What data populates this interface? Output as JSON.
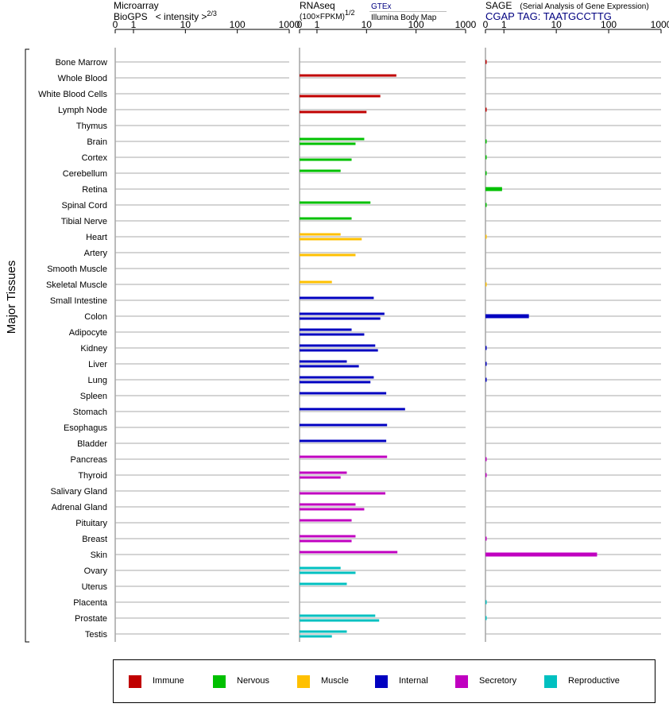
{
  "headers": {
    "microarray": {
      "line1": "Microarray",
      "source": "BioGPS",
      "scale": "< intensity >",
      "exponent": "2/3"
    },
    "rnaseq": {
      "line1": "RNAseq",
      "unit": "(100×FPKM)",
      "exponent": "1/2",
      "source1": "GTEx",
      "source2": "Illumina Body Map"
    },
    "sage": {
      "line1": "SAGE",
      "desc": "(Serial Analysis of Gene Expression)",
      "tag": "CGAP TAG: TAATGCCTTG"
    }
  },
  "y_axis_label": "Major Tissues",
  "colors": {
    "Immune": "#c00000",
    "Nervous": "#00c000",
    "Muscle": "#ffc000",
    "Internal": "#0000c0",
    "Secretory": "#c000c0",
    "Reproductive": "#00c0c0"
  },
  "legend": [
    {
      "label": "Immune",
      "group": "Immune"
    },
    {
      "label": "Nervous",
      "group": "Nervous"
    },
    {
      "label": "Muscle",
      "group": "Muscle"
    },
    {
      "label": "Internal",
      "group": "Internal"
    },
    {
      "label": "Secretory",
      "group": "Secretory"
    },
    {
      "label": "Reproductive",
      "group": "Reproductive"
    }
  ],
  "chart_data": {
    "type": "bar",
    "orientation": "horizontal",
    "panels": [
      {
        "id": "microarray",
        "ticks": [
          "0",
          "1",
          "10",
          "100",
          "1000"
        ],
        "xlim": [
          0,
          1000
        ]
      },
      {
        "id": "rnaseq",
        "ticks": [
          "0",
          "1",
          "10",
          "100",
          "1000"
        ],
        "xlim": [
          0,
          1000
        ]
      },
      {
        "id": "sage",
        "ticks": [
          "0",
          "1",
          "10",
          "100",
          "1000"
        ],
        "xlim": [
          0,
          1000
        ]
      }
    ],
    "tissues": [
      {
        "name": "Bone Marrow",
        "group": "Immune",
        "microarray": [],
        "rnaseq": [],
        "sage": 0.05
      },
      {
        "name": "Whole Blood",
        "group": "Immune",
        "microarray": [],
        "rnaseq": [
          40,
          null
        ],
        "sage": null
      },
      {
        "name": "White Blood Cells",
        "group": "Immune",
        "microarray": [],
        "rnaseq": [
          null,
          19
        ],
        "sage": null
      },
      {
        "name": "Lymph Node",
        "group": "Immune",
        "microarray": [],
        "rnaseq": [
          null,
          10
        ],
        "sage": 0.05
      },
      {
        "name": "Thymus",
        "group": "Immune",
        "microarray": [],
        "rnaseq": [],
        "sage": null
      },
      {
        "name": "Brain",
        "group": "Nervous",
        "microarray": [],
        "rnaseq": [
          9,
          6
        ],
        "sage": 0.04
      },
      {
        "name": "Cortex",
        "group": "Nervous",
        "microarray": [],
        "rnaseq": [
          null,
          5
        ],
        "sage": 0.04
      },
      {
        "name": "Cerebellum",
        "group": "Nervous",
        "microarray": [],
        "rnaseq": [
          3,
          null
        ],
        "sage": 0.04
      },
      {
        "name": "Retina",
        "group": "Nervous",
        "microarray": [],
        "rnaseq": [],
        "sage": 0.9
      },
      {
        "name": "Spinal Cord",
        "group": "Nervous",
        "microarray": [],
        "rnaseq": [
          12,
          null
        ],
        "sage": 0.04
      },
      {
        "name": "Tibial Nerve",
        "group": "Nervous",
        "microarray": [],
        "rnaseq": [
          5,
          null
        ],
        "sage": null
      },
      {
        "name": "Heart",
        "group": "Muscle",
        "microarray": [],
        "rnaseq": [
          3,
          8
        ],
        "sage": 0.03
      },
      {
        "name": "Artery",
        "group": "Muscle",
        "microarray": [],
        "rnaseq": [
          null,
          6
        ],
        "sage": null
      },
      {
        "name": "Smooth Muscle",
        "group": "Muscle",
        "microarray": [],
        "rnaseq": [],
        "sage": null
      },
      {
        "name": "Skeletal Muscle",
        "group": "Muscle",
        "microarray": [],
        "rnaseq": [
          2,
          null
        ],
        "sage": 0.03
      },
      {
        "name": "Small Intestine",
        "group": "Internal",
        "microarray": [],
        "rnaseq": [
          14,
          null
        ],
        "sage": null
      },
      {
        "name": "Colon",
        "group": "Internal",
        "microarray": [],
        "rnaseq": [
          23,
          19
        ],
        "sage": 3
      },
      {
        "name": "Adipocyte",
        "group": "Internal",
        "microarray": [],
        "rnaseq": [
          5,
          9
        ],
        "sage": null
      },
      {
        "name": "Kidney",
        "group": "Internal",
        "microarray": [],
        "rnaseq": [
          15,
          17
        ],
        "sage": 0.06
      },
      {
        "name": "Liver",
        "group": "Internal",
        "microarray": [],
        "rnaseq": [
          4,
          7
        ],
        "sage": 0.06
      },
      {
        "name": "Lung",
        "group": "Internal",
        "microarray": [],
        "rnaseq": [
          14,
          12
        ],
        "sage": 0.06
      },
      {
        "name": "Spleen",
        "group": "Internal",
        "microarray": [],
        "rnaseq": [
          25,
          null
        ],
        "sage": null
      },
      {
        "name": "Stomach",
        "group": "Internal",
        "microarray": [],
        "rnaseq": [
          60,
          null
        ],
        "sage": null
      },
      {
        "name": "Esophagus",
        "group": "Internal",
        "microarray": [],
        "rnaseq": [
          26,
          null
        ],
        "sage": null
      },
      {
        "name": "Bladder",
        "group": "Internal",
        "microarray": [],
        "rnaseq": [
          25,
          null
        ],
        "sage": null
      },
      {
        "name": "Pancreas",
        "group": "Secretory",
        "microarray": [],
        "rnaseq": [
          26,
          null
        ],
        "sage": 0.05
      },
      {
        "name": "Thyroid",
        "group": "Secretory",
        "microarray": [],
        "rnaseq": [
          4,
          3
        ],
        "sage": 0.05
      },
      {
        "name": "Salivary Gland",
        "group": "Secretory",
        "microarray": [],
        "rnaseq": [
          null,
          24
        ],
        "sage": null
      },
      {
        "name": "Adrenal Gland",
        "group": "Secretory",
        "microarray": [],
        "rnaseq": [
          6,
          9
        ],
        "sage": null
      },
      {
        "name": "Pituitary",
        "group": "Secretory",
        "microarray": [],
        "rnaseq": [
          5,
          null
        ],
        "sage": null
      },
      {
        "name": "Breast",
        "group": "Secretory",
        "microarray": [],
        "rnaseq": [
          6,
          5
        ],
        "sage": 0.05
      },
      {
        "name": "Skin",
        "group": "Secretory",
        "microarray": [],
        "rnaseq": [
          42,
          null
        ],
        "sage": 60
      },
      {
        "name": "Ovary",
        "group": "Reproductive",
        "microarray": [],
        "rnaseq": [
          3,
          6
        ],
        "sage": null
      },
      {
        "name": "Uterus",
        "group": "Reproductive",
        "microarray": [],
        "rnaseq": [
          4,
          null
        ],
        "sage": null
      },
      {
        "name": "Placenta",
        "group": "Reproductive",
        "microarray": [],
        "rnaseq": [],
        "sage": 0.05
      },
      {
        "name": "Prostate",
        "group": "Reproductive",
        "microarray": [],
        "rnaseq": [
          15,
          18
        ],
        "sage": 0.05
      },
      {
        "name": "Testis",
        "group": "Reproductive",
        "microarray": [],
        "rnaseq": [
          4,
          2
        ],
        "sage": null
      }
    ]
  }
}
